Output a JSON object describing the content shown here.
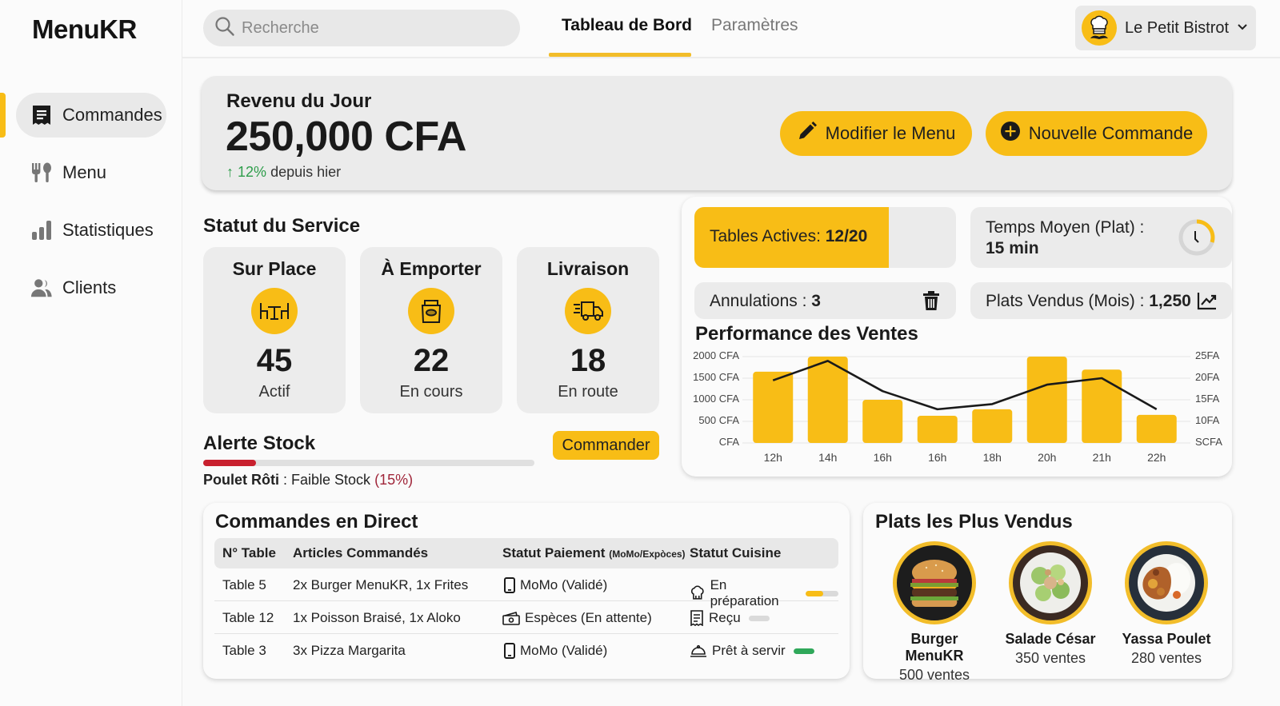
{
  "app": {
    "logo": "MenuKR"
  },
  "sidebar": {
    "items": [
      {
        "label": "Commandes",
        "icon": "receipt-icon",
        "active": true
      },
      {
        "label": "Menu",
        "icon": "utensils-icon",
        "active": false
      },
      {
        "label": "Statistiques",
        "icon": "bar-chart-icon",
        "active": false
      },
      {
        "label": "Clients",
        "icon": "users-icon",
        "active": false
      }
    ]
  },
  "header": {
    "search_placeholder": "Recherche",
    "tabs": [
      {
        "label": "Tableau de Bord",
        "active": true
      },
      {
        "label": "Paramètres",
        "active": false
      }
    ],
    "profile": {
      "name": "Le Petit Bistrot",
      "icon": "chef-hat-avatar-icon"
    }
  },
  "revenue": {
    "title": "Revenu du Jour",
    "value": "250,000 CFA",
    "delta_arrow": "↑",
    "delta_pct": "12%",
    "delta_text": "depuis hier",
    "buttons": {
      "edit_menu": "Modifier le Menu",
      "new_order": "Nouvelle Commande"
    }
  },
  "service": {
    "title": "Statut du Service",
    "cards": [
      {
        "title": "Sur Place",
        "count": "45",
        "status": "Actif",
        "icon": "dining-table-icon"
      },
      {
        "title": "À Emporter",
        "count": "22",
        "status": "En cours",
        "icon": "takeaway-bag-icon"
      },
      {
        "title": "Livraison",
        "count": "18",
        "status": "En route",
        "icon": "delivery-truck-icon"
      }
    ]
  },
  "stock": {
    "title": "Alerte Stock",
    "button": "Commander",
    "item": "Poulet Rôti",
    "separator": " : ",
    "status": "Faible Stock",
    "pct": "(15%)",
    "level": 15
  },
  "kpis": {
    "tables_label": "Tables Actives: ",
    "tables_value": "12/20",
    "tables_fill_pct": 60,
    "avg_time_label": "Temps Moyen (Plat) :",
    "avg_time_value": "15 min",
    "cancellations_label": "Annulations : ",
    "cancellations_value": "3",
    "dishes_sold_label": "Plats Vendus (Mois) : ",
    "dishes_sold_value": "1,250"
  },
  "chart": {
    "title": "Performance des Ventes"
  },
  "chart_data": {
    "type": "bar",
    "title": "Performance des Ventes",
    "categories": [
      "12h",
      "14h",
      "16h",
      "16h",
      "18h",
      "20h",
      "21h",
      "22h"
    ],
    "series": [
      {
        "name": "Ventes (barres)",
        "type": "bar",
        "axis": "left",
        "values": [
          1650,
          2000,
          1000,
          630,
          780,
          2000,
          1700,
          650
        ]
      },
      {
        "name": "Tendance (ligne)",
        "type": "line",
        "axis": "left",
        "values": [
          1450,
          1900,
          1200,
          780,
          900,
          1350,
          1500,
          780
        ]
      }
    ],
    "y_left": {
      "ticks": [
        "CFA",
        "500 CFA",
        "1000 CFA",
        "1500 CFA",
        "2000 CFA"
      ],
      "range": [
        0,
        2000
      ]
    },
    "y_right": {
      "ticks": [
        "SCFA",
        "10FA",
        "15FA",
        "20FA",
        "25FA"
      ]
    },
    "xlabel": "",
    "ylabel": "",
    "grid": true
  },
  "orders": {
    "title": "Commandes en Direct",
    "columns": [
      "N° Table",
      "Articles Commandés",
      "Statut Paiement",
      "(MoMo/Expòces)",
      "Statut Cuisine"
    ],
    "rows": [
      {
        "table": "Table 5",
        "items": "2x Burger MenuKR, 1x Frites",
        "payment": "MoMo (Validé)",
        "payment_icon": "phone-icon",
        "kitchen": "En préparation",
        "kitchen_icon": "chef-hat-icon",
        "progress": 55,
        "progress_color": "#f8bd16"
      },
      {
        "table": "Table 12",
        "items": "1x Poisson Braisé, 1x Aloko",
        "payment": "Espèces (En attente)",
        "payment_icon": "cash-icon",
        "kitchen": "Reçu",
        "kitchen_icon": "receipt-icon",
        "progress": 0,
        "progress_color": "#d0d0d0"
      },
      {
        "table": "Table 3",
        "items": "3x Pizza Margarita",
        "payment": "MoMo (Validé)",
        "payment_icon": "phone-icon",
        "kitchen": "Prêt à servir",
        "kitchen_icon": "cloche-icon",
        "progress": 100,
        "progress_color": "#2fa85a"
      }
    ]
  },
  "top_dishes": {
    "title": "Plats les Plus Vendus",
    "items": [
      {
        "name": "Burger MenuKR",
        "sales": "500 ventes"
      },
      {
        "name": "Salade César",
        "sales": "350 ventes"
      },
      {
        "name": "Yassa Poulet",
        "sales": "280 ventes"
      }
    ]
  },
  "colors": {
    "accent": "#f8bd16",
    "danger": "#c8202e",
    "success": "#2e9d4b",
    "card_bg": "#ebebeb"
  }
}
